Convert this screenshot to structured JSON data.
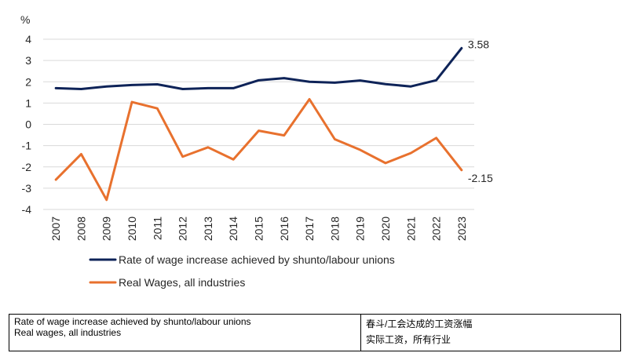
{
  "chart_data": {
    "type": "line",
    "unit_label": "%",
    "x": [
      "2007",
      "2008",
      "2009",
      "2010",
      "2011",
      "2012",
      "2013",
      "2014",
      "2015",
      "2016",
      "2017",
      "2018",
      "2019",
      "2020",
      "2021",
      "2022",
      "2023"
    ],
    "ylim": [
      -4,
      4
    ],
    "yticks": [
      4,
      3,
      2,
      1,
      0,
      -1,
      -2,
      -3,
      -4
    ],
    "ytick_labels": [
      "4",
      "3",
      "2",
      "1",
      "0",
      "-1",
      "-2",
      "-3",
      "-4"
    ],
    "grid": true,
    "legend_position": "bottom-left",
    "series": [
      {
        "name": "Rate of wage increase achieved by shunto/labour unions",
        "color": "#0E2358",
        "values": [
          1.7,
          1.66,
          1.78,
          1.85,
          1.88,
          1.66,
          1.7,
          1.7,
          2.07,
          2.17,
          2.0,
          1.96,
          2.06,
          1.89,
          1.78,
          2.07,
          3.58
        ],
        "end_label": "3.58"
      },
      {
        "name": "Real Wages, all industries",
        "color": "#E8712E",
        "values": [
          -2.6,
          -1.4,
          -3.55,
          1.05,
          0.75,
          -1.52,
          -1.08,
          -1.65,
          -0.3,
          -0.52,
          1.18,
          -0.7,
          -1.2,
          -1.82,
          -1.35,
          -0.64,
          -2.15
        ],
        "end_label": "-2.15"
      }
    ]
  },
  "translation_table": {
    "rows": [
      {
        "en": "Rate of wage increase achieved by shunto/labour unions",
        "zh": "春斗/工会达成的工资涨幅"
      },
      {
        "en": "Real wages, all industries",
        "zh": "实际工资，所有行业"
      }
    ]
  }
}
